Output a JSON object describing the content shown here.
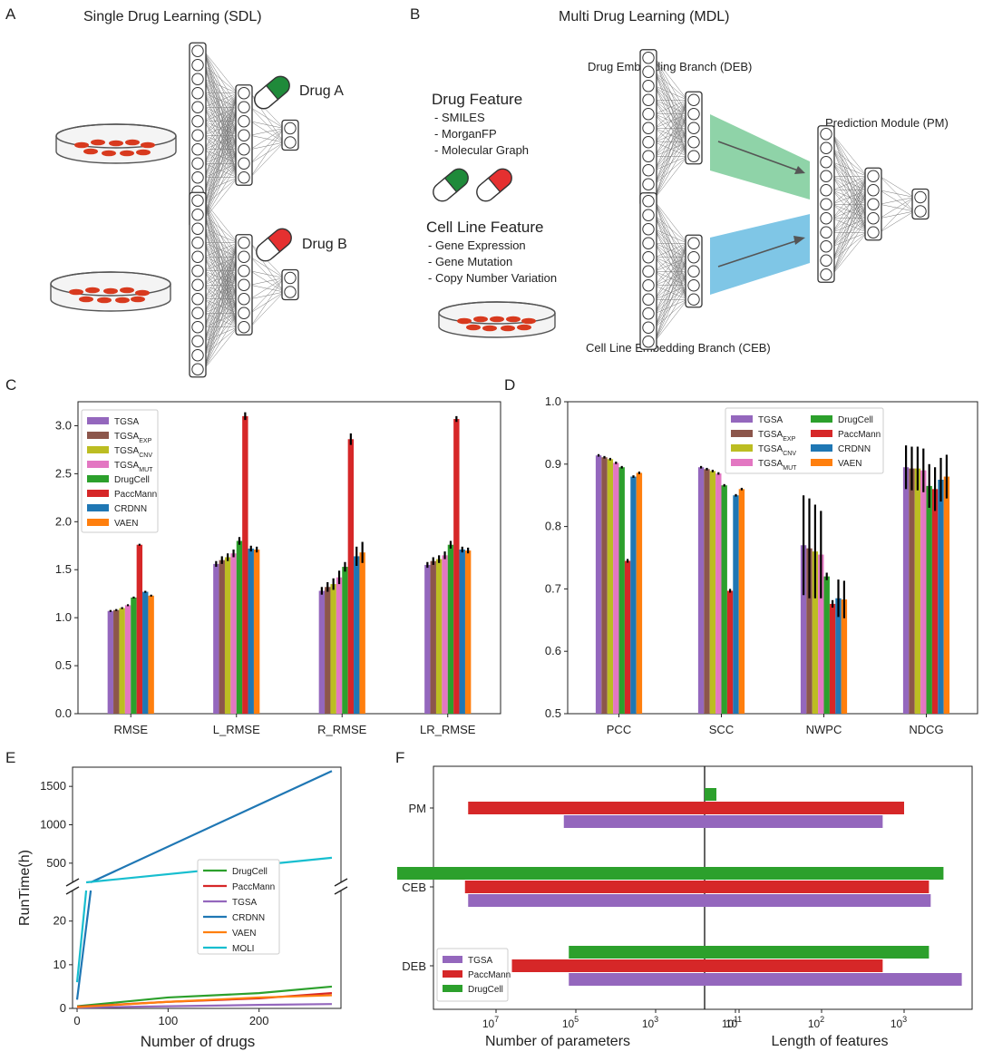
{
  "panels": {
    "A": {
      "letter": "A",
      "title": "Single Drug Learning (SDL)",
      "drug_a": "Drug A",
      "drug_b": "Drug B",
      "colors": {
        "drug_a": "#1f8a3a",
        "drug_b": "#e53030",
        "cells": "#d83a1e"
      }
    },
    "B": {
      "letter": "B",
      "title": "Multi Drug Learning (MDL)",
      "drug_feature_title": "Drug Feature",
      "drug_features": [
        "- SMILES",
        "- MorganFP",
        "- Molecular Graph"
      ],
      "cell_feature_title": "Cell Line Feature",
      "cell_features": [
        "- Gene Expression",
        "- Gene Mutation",
        "- Copy Number Variation"
      ],
      "deb_label": "Drug Embedding Branch (DEB)",
      "ceb_label": "Cell Line Embedding Branch (CEB)",
      "pm_label": "Prediction Module (PM)",
      "colors": {
        "deb_arrow": "#8fd3a8",
        "ceb_arrow": "#7fc6e6"
      }
    },
    "C": {
      "letter": "C"
    },
    "D": {
      "letter": "D"
    },
    "E": {
      "letter": "E"
    },
    "F": {
      "letter": "F"
    }
  },
  "chart_data": [
    {
      "id": "C",
      "type": "bar",
      "categories": [
        "RMSE",
        "L_RMSE",
        "R_RMSE",
        "LR_RMSE"
      ],
      "ylim": [
        0,
        3.25
      ],
      "yticks": [
        "0.0",
        "0.5",
        "1.0",
        "1.5",
        "2.0",
        "2.5",
        "3.0"
      ],
      "grid": false,
      "legend_position": "top-left",
      "series": [
        {
          "name": "TGSA",
          "color": "#9467bd",
          "values": [
            1.07,
            1.56,
            1.28,
            1.55
          ],
          "err": [
            0.01,
            0.03,
            0.04,
            0.03
          ]
        },
        {
          "name": "TGSA",
          "sub": "EXP",
          "color": "#8c564b",
          "values": [
            1.08,
            1.6,
            1.32,
            1.59
          ],
          "err": [
            0.01,
            0.04,
            0.05,
            0.04
          ]
        },
        {
          "name": "TGSA",
          "sub": "CNV",
          "color": "#bcbd22",
          "values": [
            1.1,
            1.63,
            1.35,
            1.61
          ],
          "err": [
            0.01,
            0.04,
            0.06,
            0.04
          ]
        },
        {
          "name": "TGSA",
          "sub": "MUT",
          "color": "#e377c2",
          "values": [
            1.13,
            1.67,
            1.42,
            1.65
          ],
          "err": [
            0.01,
            0.04,
            0.07,
            0.04
          ]
        },
        {
          "name": "DrugCell",
          "color": "#2ca02c",
          "values": [
            1.21,
            1.8,
            1.53,
            1.76
          ],
          "err": [
            0.01,
            0.04,
            0.05,
            0.04
          ]
        },
        {
          "name": "PaccMann",
          "color": "#d62728",
          "values": [
            1.76,
            3.1,
            2.86,
            3.07
          ],
          "err": [
            0.01,
            0.04,
            0.06,
            0.03
          ]
        },
        {
          "name": "CRDNN",
          "color": "#1f77b4",
          "values": [
            1.27,
            1.72,
            1.64,
            1.71
          ],
          "err": [
            0.01,
            0.03,
            0.1,
            0.03
          ]
        },
        {
          "name": "VAEN",
          "color": "#ff7f0e",
          "values": [
            1.23,
            1.71,
            1.68,
            1.7
          ],
          "err": [
            0.01,
            0.03,
            0.11,
            0.03
          ]
        }
      ]
    },
    {
      "id": "D",
      "type": "bar",
      "categories": [
        "PCC",
        "SCC",
        "NWPC",
        "NDCG"
      ],
      "ylim": [
        0.5,
        1.0
      ],
      "yticks": [
        "0.5",
        "0.6",
        "0.7",
        "0.8",
        "0.9",
        "1.0"
      ],
      "grid": false,
      "legend_position": "top-right",
      "series": [
        {
          "name": "TGSA",
          "color": "#9467bd",
          "values": [
            0.914,
            0.895,
            0.77,
            0.895
          ],
          "err": [
            0.002,
            0.002,
            0.08,
            0.035
          ]
        },
        {
          "name": "TGSA",
          "sub": "EXP",
          "color": "#8c564b",
          "values": [
            0.911,
            0.892,
            0.765,
            0.893
          ],
          "err": [
            0.002,
            0.002,
            0.08,
            0.035
          ]
        },
        {
          "name": "TGSA",
          "sub": "CNV",
          "color": "#bcbd22",
          "values": [
            0.908,
            0.889,
            0.76,
            0.893
          ],
          "err": [
            0.002,
            0.002,
            0.075,
            0.035
          ]
        },
        {
          "name": "TGSA",
          "sub": "MUT",
          "color": "#e377c2",
          "values": [
            0.902,
            0.885,
            0.755,
            0.89
          ],
          "err": [
            0.002,
            0.002,
            0.07,
            0.035
          ]
        },
        {
          "name": "DrugCell",
          "color": "#2ca02c",
          "values": [
            0.895,
            0.866,
            0.72,
            0.865
          ],
          "err": [
            0.002,
            0.002,
            0.006,
            0.035
          ]
        },
        {
          "name": "PaccMann",
          "color": "#d62728",
          "values": [
            0.745,
            0.697,
            0.676,
            0.86
          ],
          "err": [
            0.003,
            0.003,
            0.006,
            0.035
          ]
        },
        {
          "name": "CRDNN",
          "color": "#1f77b4",
          "values": [
            0.88,
            0.85,
            0.685,
            0.875
          ],
          "err": [
            0.002,
            0.002,
            0.03,
            0.035
          ]
        },
        {
          "name": "VAEN",
          "color": "#ff7f0e",
          "values": [
            0.886,
            0.86,
            0.683,
            0.88
          ],
          "err": [
            0.002,
            0.002,
            0.03,
            0.035
          ]
        }
      ]
    },
    {
      "id": "E",
      "type": "line",
      "xlabel": "Number of drugs",
      "ylabel": "RunTime(h)",
      "xticks": [
        0,
        100,
        200
      ],
      "xlim": [
        -5,
        290
      ],
      "broken_axis": true,
      "upper_yticks": [
        500,
        1000,
        1500
      ],
      "upper_ylim": [
        250,
        1750
      ],
      "lower_yticks": [
        0,
        10,
        20
      ],
      "lower_ylim": [
        0,
        27
      ],
      "legend_position": "right",
      "series": [
        {
          "name": "DrugCell",
          "color": "#2ca02c",
          "x": [
            0,
            100,
            200,
            280
          ],
          "y": [
            0.5,
            2.5,
            3.5,
            5
          ]
        },
        {
          "name": "PaccMann",
          "color": "#d62728",
          "x": [
            0,
            100,
            200,
            280
          ],
          "y": [
            0.4,
            1.5,
            2.3,
            3.5
          ]
        },
        {
          "name": "TGSA",
          "color": "#9467bd",
          "x": [
            0,
            100,
            200,
            280
          ],
          "y": [
            0.2,
            0.5,
            0.8,
            1
          ]
        },
        {
          "name": "CRDNN",
          "color": "#1f77b4",
          "x": [
            0,
            15,
            280
          ],
          "y": [
            2,
            30,
            1700
          ]
        },
        {
          "name": "VAEN",
          "color": "#ff7f0e",
          "x": [
            0,
            100,
            200,
            280
          ],
          "y": [
            0.3,
            1.5,
            2.5,
            3
          ]
        },
        {
          "name": "MOLI",
          "color": "#17becf",
          "x": [
            0,
            10,
            280
          ],
          "y": [
            6,
            30,
            570
          ]
        }
      ]
    },
    {
      "id": "F",
      "type": "bar",
      "orientation": "horizontal",
      "categories": [
        "PM",
        "CEB",
        "DEB"
      ],
      "left_xlabel": "Number of parameters",
      "right_xlabel": "Length of features",
      "left_xticks": [
        "10^7",
        "10^5",
        "10^3",
        "10^1"
      ],
      "right_xticks": [
        "10^1",
        "10^2",
        "10^3"
      ],
      "legend_position": "bottom-left",
      "series": [
        {
          "name": "TGSA",
          "color": "#9467bd",
          "params": [
            200000,
            50000000,
            150000
          ],
          "features": [
            550,
            2100,
            5000
          ]
        },
        {
          "name": "PaccMann",
          "color": "#d62728",
          "params": [
            50000000,
            60000000,
            4000000
          ],
          "features": [
            1000,
            2000,
            550
          ]
        },
        {
          "name": "DrugCell",
          "color": "#2ca02c",
          "params": [
            30,
            3000000000,
            150000
          ],
          "features": [
            5,
            3000,
            2000
          ]
        }
      ]
    }
  ]
}
